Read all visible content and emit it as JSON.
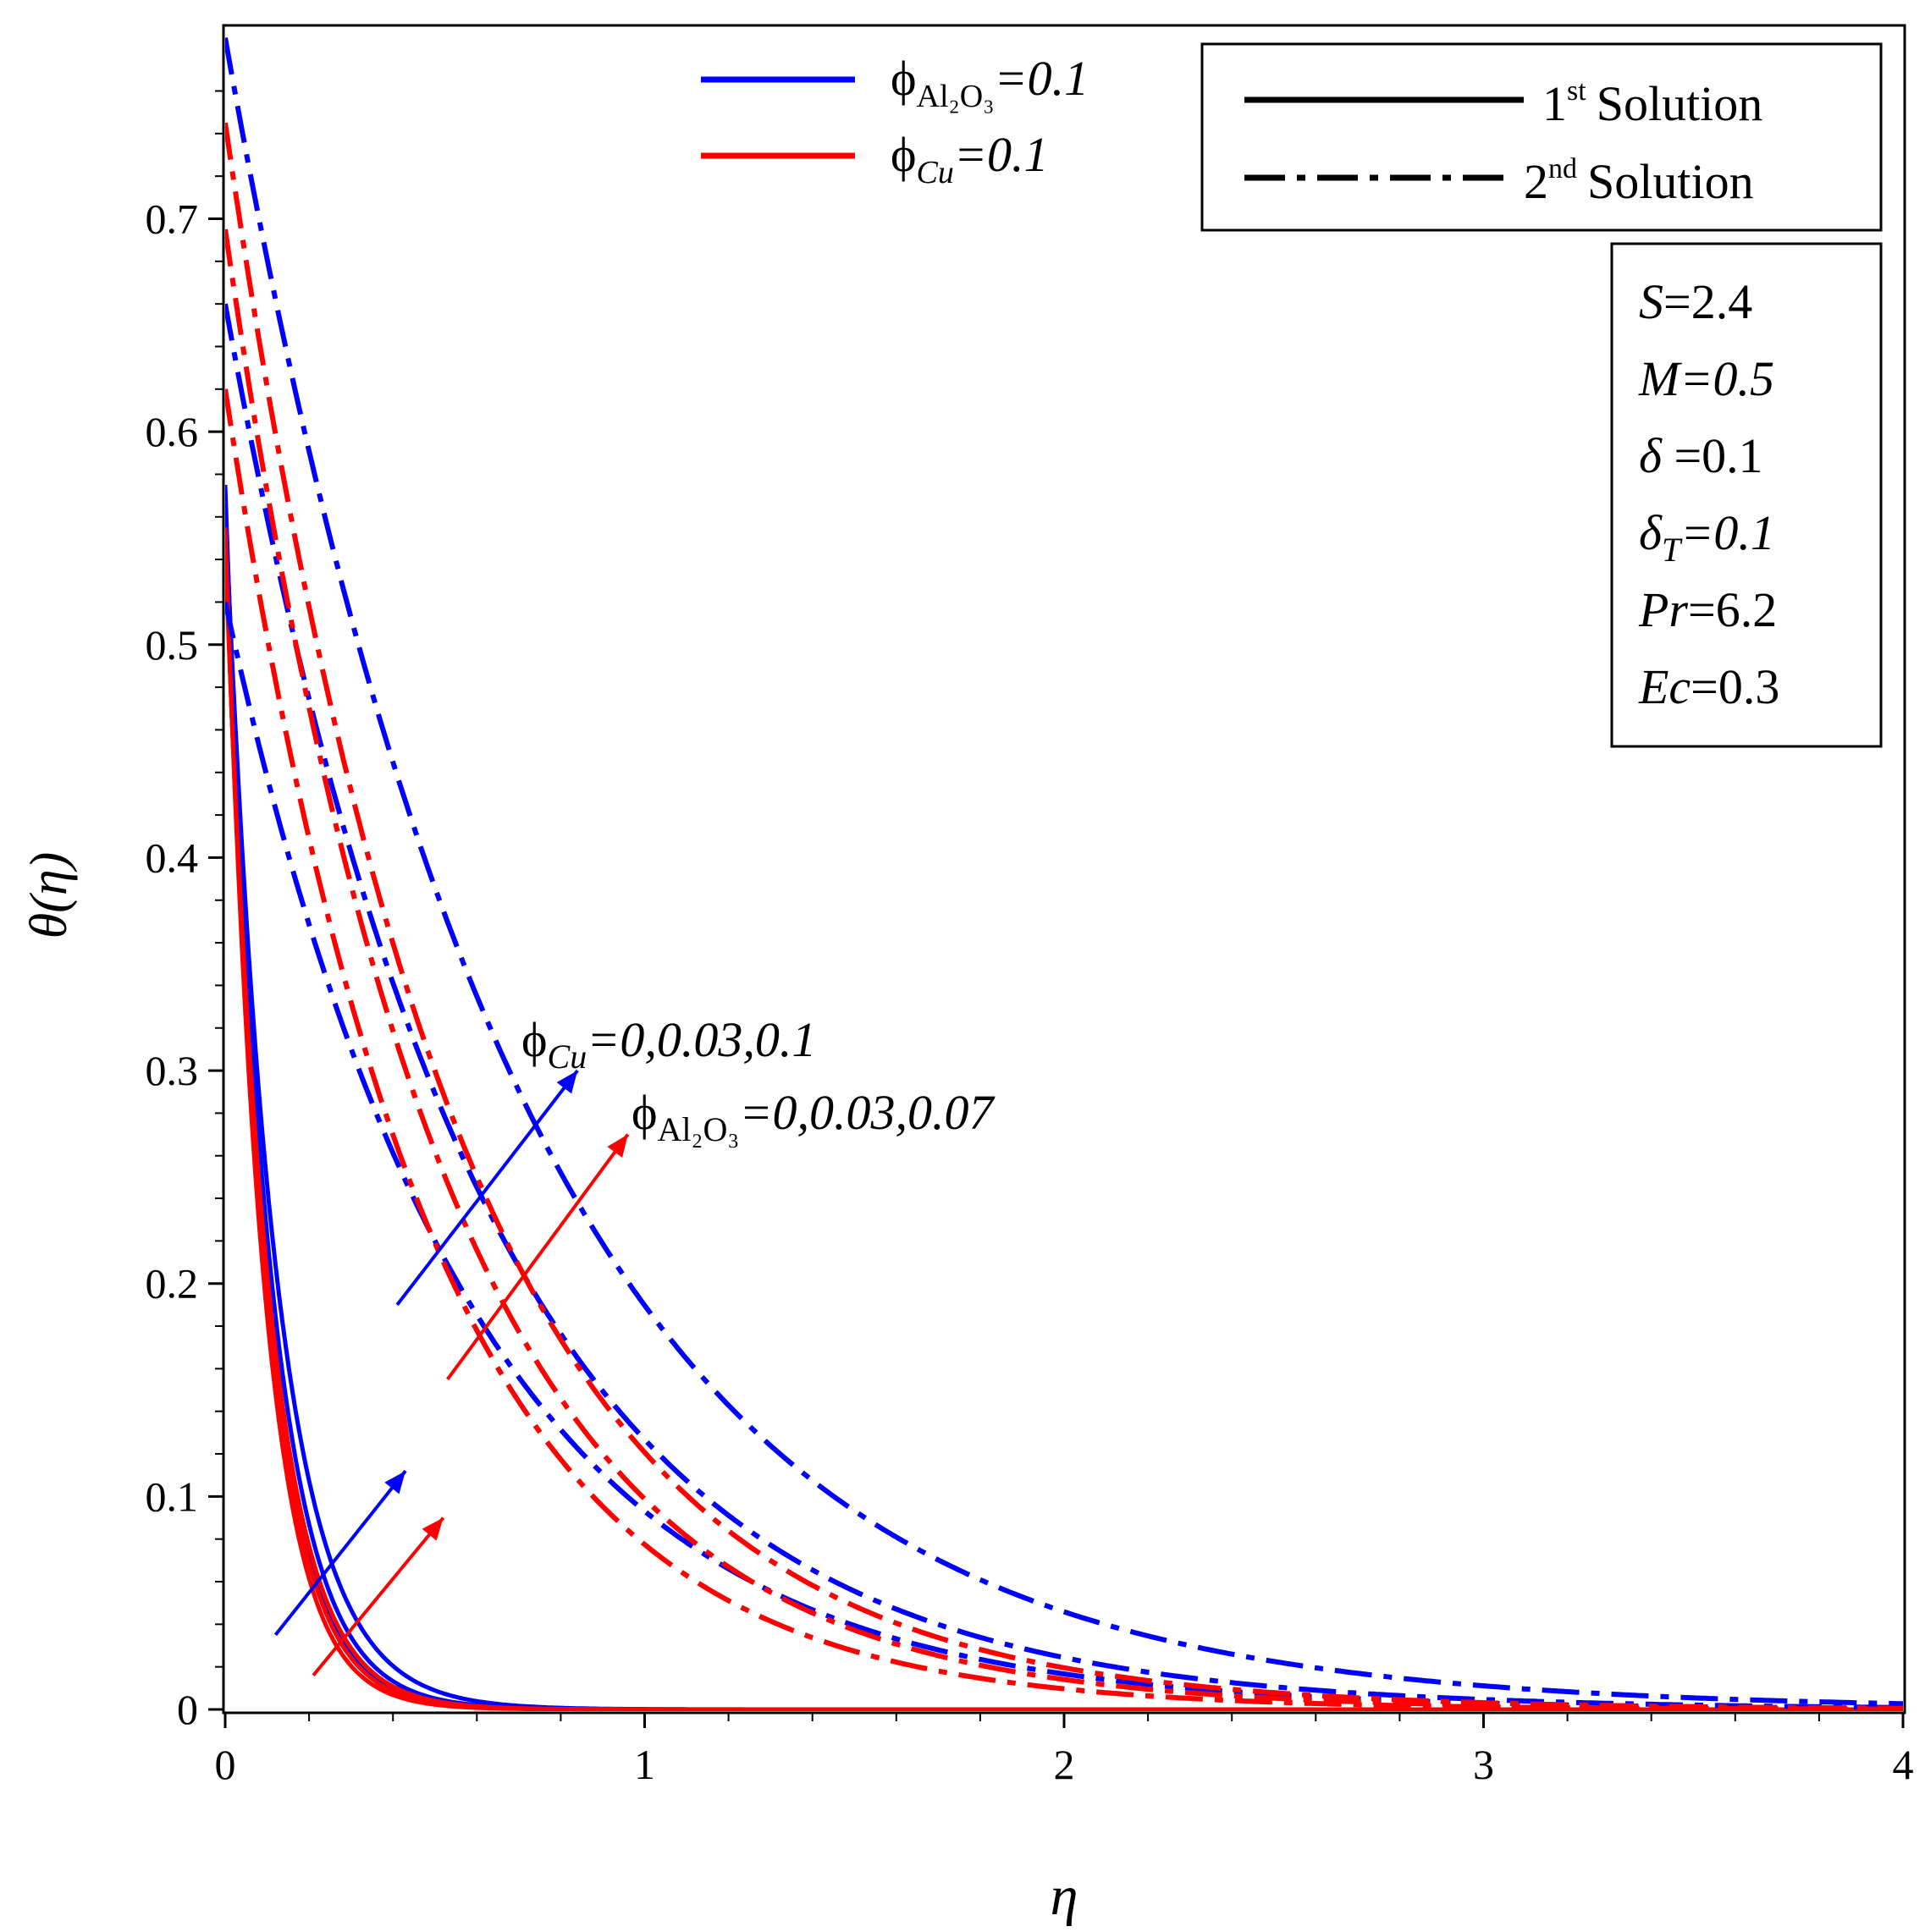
{
  "chart_data": {
    "type": "line",
    "title": "",
    "xlabel": "η",
    "ylabel": "θ(η)",
    "xlim": [
      0,
      4
    ],
    "ylim": [
      0,
      0.79
    ],
    "x_ticks": [
      "0",
      "1",
      "2",
      "3",
      "4"
    ],
    "y_ticks": [
      "0",
      "0.1",
      "0.2",
      "0.3",
      "0.4",
      "0.5",
      "0.6",
      "0.7"
    ],
    "colors": {
      "al2o3": "#0000ff",
      "cu": "#ff0000"
    },
    "color_legend": {
      "al2o3_symbol": "ϕ",
      "al2o3_subscript": "Al₂O₃",
      "al2o3_value": "=0.1",
      "cu_symbol": "ϕ",
      "cu_subscript": "Cu",
      "cu_value": "=0.1"
    },
    "style_legend": {
      "first_num": "1",
      "first_sup": "st",
      "first_text": "Solution",
      "second_num": "2",
      "second_sup": "nd",
      "second_text": "Solution"
    },
    "params": [
      {
        "name": "S",
        "value": "=2.4"
      },
      {
        "name": "M",
        "value": "=0.5"
      },
      {
        "name": "δ",
        "value": " =0.1"
      },
      {
        "name": "δ",
        "sub": "T",
        "value": "=0.1"
      },
      {
        "name": "Pr",
        "value": "=6.2"
      },
      {
        "name": "Ec",
        "value": "=0.3"
      }
    ],
    "annotations": {
      "cu_label": {
        "symbol": "ϕ",
        "sub": "Cu",
        "values": "=0,0.03,0.1"
      },
      "al_label": {
        "symbol": "ϕ",
        "sub": "Al₂O₃",
        "values": "=0,0.03,0.07"
      }
    },
    "series": [
      {
        "name": "Al2O3 phi=0 1st",
        "color": "blue",
        "style": "solid",
        "theta0": 0.575,
        "decay": 10.2
      },
      {
        "name": "Al2O3 phi=0.03 1st",
        "color": "blue",
        "style": "solid",
        "theta0": 0.57,
        "decay": 9.4
      },
      {
        "name": "Al2O3 phi=0.07 1st",
        "color": "blue",
        "style": "solid",
        "theta0": 0.565,
        "decay": 8.3
      },
      {
        "name": "Cu phi=0 1st",
        "color": "red",
        "style": "solid",
        "theta0": 0.555,
        "decay": 11.0
      },
      {
        "name": "Cu phi=0.03 1st",
        "color": "red",
        "style": "solid",
        "theta0": 0.55,
        "decay": 10.4
      },
      {
        "name": "Cu phi=0.1 1st",
        "color": "red",
        "style": "solid",
        "theta0": 0.545,
        "decay": 9.8
      },
      {
        "name": "Al2O3 phi=0 2nd",
        "color": "blue",
        "style": "dashdot",
        "theta0": 0.52,
        "decay": 1.72
      },
      {
        "name": "Al2O3 phi=0.03 2nd",
        "color": "blue",
        "style": "dashdot",
        "theta0": 0.66,
        "decay": 1.65
      },
      {
        "name": "Al2O3 phi=0.07 2nd",
        "color": "blue",
        "style": "dashdot",
        "theta0": 0.785,
        "decay": 1.42
      },
      {
        "name": "Cu phi=0 2nd",
        "color": "red",
        "style": "dashdot",
        "theta0": 0.62,
        "decay": 2.08
      },
      {
        "name": "Cu phi=0.03 2nd",
        "color": "red",
        "style": "dashdot",
        "theta0": 0.695,
        "decay": 1.95
      },
      {
        "name": "Cu phi=0.1 2nd",
        "color": "red",
        "style": "dashdot",
        "theta0": 0.745,
        "decay": 1.82
      }
    ],
    "arrows": [
      {
        "color": "blue",
        "from": [
          0.12,
          0.035
        ],
        "to": [
          0.43,
          0.112
        ]
      },
      {
        "color": "red",
        "from": [
          0.21,
          0.016
        ],
        "to": [
          0.52,
          0.09
        ]
      },
      {
        "color": "blue",
        "from": [
          0.41,
          0.19
        ],
        "to": [
          0.84,
          0.3
        ]
      },
      {
        "color": "red",
        "from": [
          0.53,
          0.155
        ],
        "to": [
          0.96,
          0.27
        ]
      }
    ]
  }
}
